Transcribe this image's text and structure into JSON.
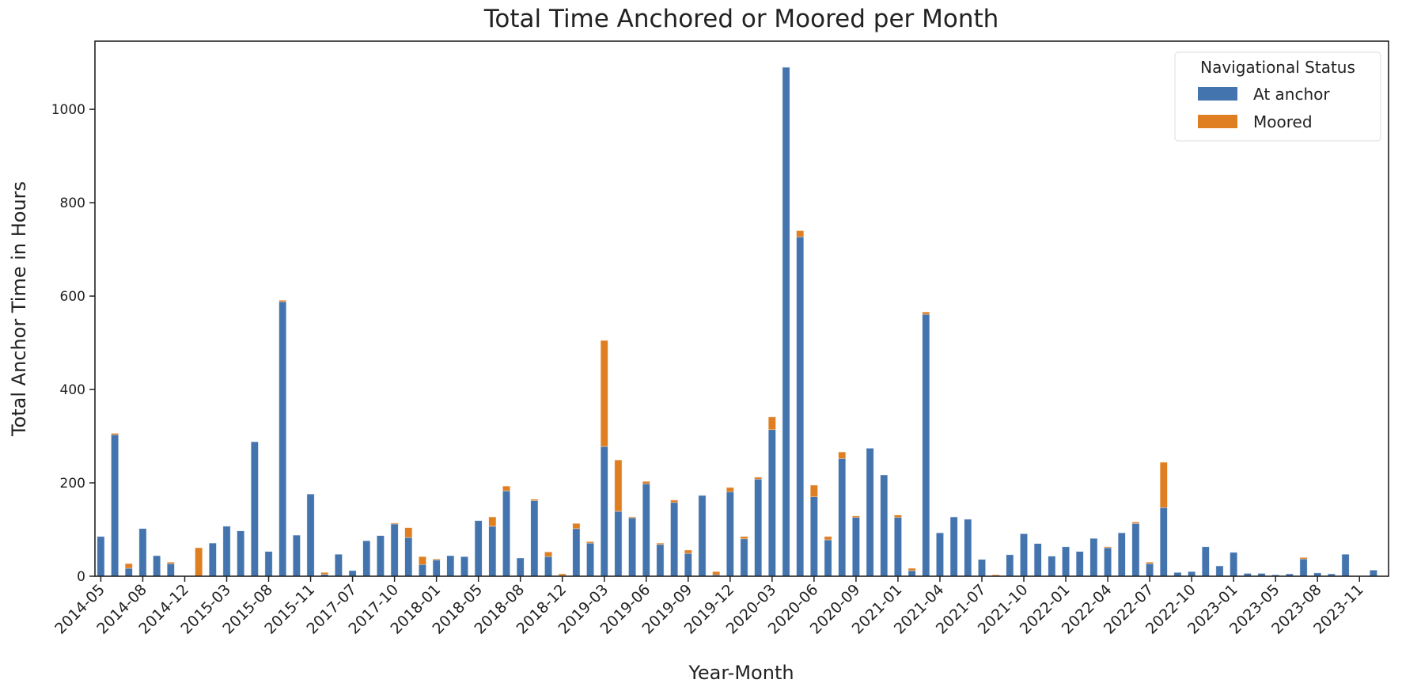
{
  "chart_data": {
    "type": "bar",
    "stacked": true,
    "title": "Total Time Anchored or Moored per Month",
    "xlabel": "Year-Month",
    "ylabel": "Total Anchor Time in Hours",
    "ylim": [
      0,
      1146
    ],
    "yticks": [
      0,
      200,
      400,
      600,
      800,
      1000
    ],
    "tick_labels": [
      "2014-05",
      "2014-08",
      "2014-12",
      "2015-03",
      "2015-08",
      "2015-11",
      "2017-07",
      "2017-10",
      "2018-01",
      "2018-05",
      "2018-08",
      "2018-12",
      "2019-03",
      "2019-06",
      "2019-09",
      "2019-12",
      "2020-03",
      "2020-06",
      "2020-09",
      "2021-01",
      "2021-04",
      "2021-07",
      "2021-10",
      "2022-01",
      "2022-04",
      "2022-07",
      "2022-10",
      "2023-01",
      "2023-05",
      "2023-08",
      "2023-11"
    ],
    "grid": false,
    "legend": {
      "title": "Navigational Status",
      "placement": "top-right"
    },
    "series": [
      {
        "name": "At anchor",
        "color": "#4474ad",
        "values": [
          85,
          303,
          17,
          102,
          44,
          27,
          0,
          0,
          71,
          107,
          97,
          288,
          53,
          588,
          88,
          176,
          4,
          47,
          12,
          76,
          87,
          112,
          83,
          25,
          35,
          44,
          42,
          119,
          107,
          183,
          39,
          162,
          42,
          1,
          102,
          71,
          278,
          139,
          125,
          198,
          68,
          158,
          49,
          173,
          3,
          181,
          80,
          208,
          314,
          1090,
          727,
          170,
          78,
          252,
          126,
          274,
          217,
          126,
          12,
          561,
          93,
          127,
          122,
          36,
          0,
          46,
          91,
          70,
          43,
          63,
          53,
          81,
          61,
          93,
          113,
          27,
          147,
          8,
          10,
          63,
          22,
          51,
          6,
          6,
          3,
          5,
          37,
          7,
          5,
          47,
          0,
          13
        ]
      },
      {
        "name": "Moored",
        "color": "#e07e22",
        "values": [
          0,
          3,
          10,
          0,
          0,
          3,
          0,
          61,
          0,
          0,
          0,
          0,
          0,
          3,
          0,
          0,
          4,
          0,
          0,
          0,
          0,
          2,
          21,
          17,
          2,
          0,
          0,
          0,
          20,
          10,
          0,
          3,
          10,
          4,
          11,
          3,
          227,
          110,
          2,
          5,
          3,
          5,
          7,
          0,
          7,
          9,
          5,
          4,
          27,
          0,
          13,
          25,
          7,
          14,
          3,
          0,
          0,
          5,
          5,
          5,
          0,
          0,
          0,
          0,
          3,
          0,
          0,
          0,
          0,
          0,
          0,
          0,
          2,
          0,
          3,
          3,
          97,
          0,
          0,
          0,
          0,
          0,
          0,
          0,
          0,
          0,
          3,
          0,
          0,
          0,
          0,
          0
        ]
      }
    ]
  }
}
